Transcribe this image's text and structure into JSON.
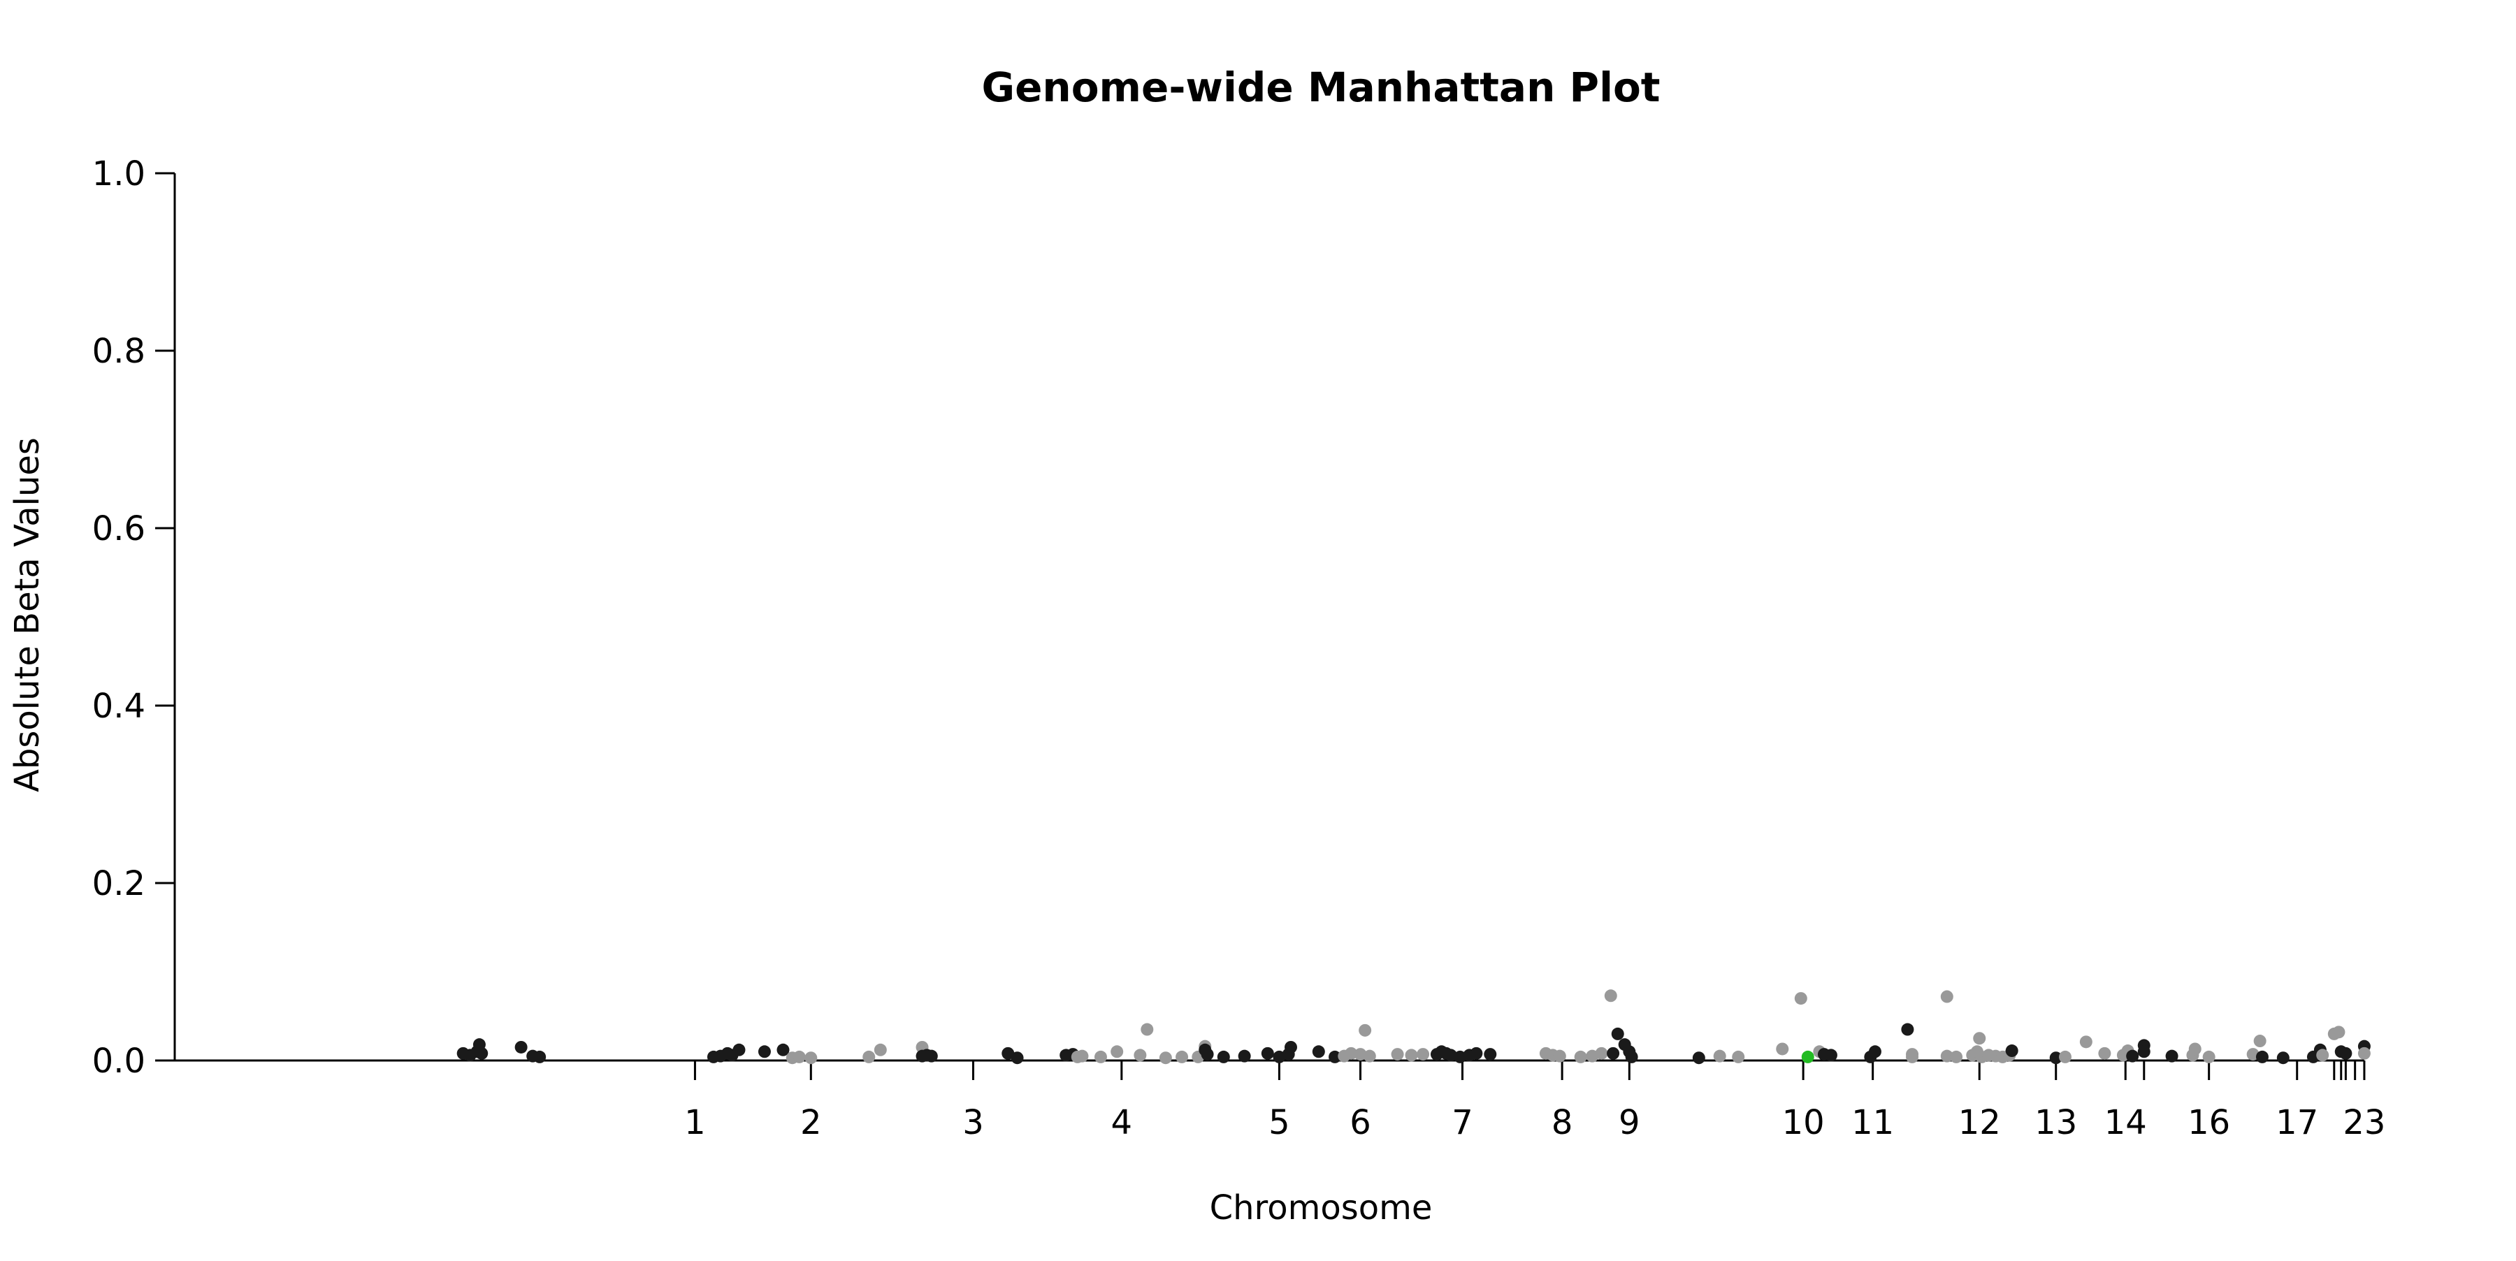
{
  "chart_data": {
    "type": "scatter",
    "title": "Genome-wide Manhattan Plot",
    "xlabel": "Chromosome",
    "ylabel": "Absolute Beta Values",
    "ylim": [
      0,
      1.0
    ],
    "y_ticks": [
      "0.0",
      "0.2",
      "0.4",
      "0.6",
      "0.8",
      "1.0"
    ],
    "x_ticks": [
      {
        "label": "1",
        "pos": 0.7
      },
      {
        "label": "2",
        "pos": 1.2
      },
      {
        "label": "3",
        "pos": 1.9
      },
      {
        "label": "4",
        "pos": 2.54
      },
      {
        "label": "5",
        "pos": 3.22
      },
      {
        "label": "6",
        "pos": 3.57
      },
      {
        "label": "7",
        "pos": 4.01
      },
      {
        "label": "8",
        "pos": 4.44
      },
      {
        "label": "9",
        "pos": 4.73
      },
      {
        "label": "10",
        "pos": 5.48
      },
      {
        "label": "11",
        "pos": 5.78
      },
      {
        "label": "12",
        "pos": 6.24
      },
      {
        "label": "13",
        "pos": 6.57
      },
      {
        "label": "14",
        "pos": 6.87
      },
      {
        "label": "",
        "pos": 6.95
      },
      {
        "label": "16",
        "pos": 7.23
      },
      {
        "label": "17",
        "pos": 7.61
      },
      {
        "label": "",
        "pos": 7.77
      },
      {
        "label": "",
        "pos": 7.8
      },
      {
        "label": "",
        "pos": 7.82
      },
      {
        "label": "",
        "pos": 7.86
      },
      {
        "label": "23",
        "pos": 7.9
      }
    ],
    "xlim": [
      -0.7,
      8.06
    ],
    "grid": false,
    "legend": "none",
    "colors": {
      "dark": "#1a1a1a",
      "light": "#999999",
      "highlight": "#22bb22"
    },
    "points": [
      {
        "x": -0.3,
        "y": 0.008,
        "c": "dark"
      },
      {
        "x": -0.27,
        "y": 0.006,
        "c": "dark"
      },
      {
        "x": -0.24,
        "y": 0.01,
        "c": "dark"
      },
      {
        "x": -0.23,
        "y": 0.018,
        "c": "dark"
      },
      {
        "x": -0.22,
        "y": 0.008,
        "c": "dark"
      },
      {
        "x": -0.05,
        "y": 0.015,
        "c": "dark"
      },
      {
        "x": 0.0,
        "y": 0.005,
        "c": "dark"
      },
      {
        "x": 0.03,
        "y": 0.004,
        "c": "dark"
      },
      {
        "x": 0.78,
        "y": 0.004,
        "c": "dark"
      },
      {
        "x": 0.81,
        "y": 0.005,
        "c": "dark"
      },
      {
        "x": 0.84,
        "y": 0.008,
        "c": "dark"
      },
      {
        "x": 0.86,
        "y": 0.006,
        "c": "dark"
      },
      {
        "x": 0.89,
        "y": 0.012,
        "c": "dark"
      },
      {
        "x": 1.0,
        "y": 0.01,
        "c": "dark"
      },
      {
        "x": 1.08,
        "y": 0.012,
        "c": "dark"
      },
      {
        "x": 1.12,
        "y": 0.003,
        "c": "light"
      },
      {
        "x": 1.15,
        "y": 0.004,
        "c": "light"
      },
      {
        "x": 1.2,
        "y": 0.003,
        "c": "light"
      },
      {
        "x": 1.45,
        "y": 0.004,
        "c": "light"
      },
      {
        "x": 1.5,
        "y": 0.012,
        "c": "light"
      },
      {
        "x": 1.68,
        "y": 0.015,
        "c": "light"
      },
      {
        "x": 1.68,
        "y": 0.005,
        "c": "dark"
      },
      {
        "x": 1.7,
        "y": 0.006,
        "c": "dark"
      },
      {
        "x": 1.72,
        "y": 0.005,
        "c": "dark"
      },
      {
        "x": 2.05,
        "y": 0.008,
        "c": "dark"
      },
      {
        "x": 2.09,
        "y": 0.003,
        "c": "dark"
      },
      {
        "x": 2.3,
        "y": 0.006,
        "c": "dark"
      },
      {
        "x": 2.33,
        "y": 0.007,
        "c": "dark"
      },
      {
        "x": 2.35,
        "y": 0.004,
        "c": "light"
      },
      {
        "x": 2.37,
        "y": 0.005,
        "c": "light"
      },
      {
        "x": 2.45,
        "y": 0.004,
        "c": "light"
      },
      {
        "x": 2.52,
        "y": 0.01,
        "c": "light"
      },
      {
        "x": 2.62,
        "y": 0.006,
        "c": "light"
      },
      {
        "x": 2.65,
        "y": 0.035,
        "c": "light"
      },
      {
        "x": 2.73,
        "y": 0.003,
        "c": "light"
      },
      {
        "x": 2.8,
        "y": 0.004,
        "c": "light"
      },
      {
        "x": 2.87,
        "y": 0.004,
        "c": "light"
      },
      {
        "x": 2.9,
        "y": 0.016,
        "c": "light"
      },
      {
        "x": 2.9,
        "y": 0.012,
        "c": "dark"
      },
      {
        "x": 2.91,
        "y": 0.007,
        "c": "dark"
      },
      {
        "x": 2.98,
        "y": 0.004,
        "c": "dark"
      },
      {
        "x": 3.07,
        "y": 0.005,
        "c": "dark"
      },
      {
        "x": 3.17,
        "y": 0.008,
        "c": "dark"
      },
      {
        "x": 3.22,
        "y": 0.004,
        "c": "dark"
      },
      {
        "x": 3.26,
        "y": 0.007,
        "c": "dark"
      },
      {
        "x": 3.27,
        "y": 0.015,
        "c": "dark"
      },
      {
        "x": 3.39,
        "y": 0.01,
        "c": "dark"
      },
      {
        "x": 3.46,
        "y": 0.004,
        "c": "dark"
      },
      {
        "x": 3.5,
        "y": 0.005,
        "c": "light"
      },
      {
        "x": 3.53,
        "y": 0.008,
        "c": "light"
      },
      {
        "x": 3.57,
        "y": 0.007,
        "c": "light"
      },
      {
        "x": 3.59,
        "y": 0.034,
        "c": "light"
      },
      {
        "x": 3.61,
        "y": 0.005,
        "c": "light"
      },
      {
        "x": 3.73,
        "y": 0.007,
        "c": "light"
      },
      {
        "x": 3.79,
        "y": 0.006,
        "c": "light"
      },
      {
        "x": 3.84,
        "y": 0.007,
        "c": "light"
      },
      {
        "x": 3.9,
        "y": 0.007,
        "c": "dark"
      },
      {
        "x": 3.92,
        "y": 0.01,
        "c": "dark"
      },
      {
        "x": 3.94,
        "y": 0.008,
        "c": "dark"
      },
      {
        "x": 3.96,
        "y": 0.006,
        "c": "dark"
      },
      {
        "x": 4.0,
        "y": 0.004,
        "c": "dark"
      },
      {
        "x": 4.04,
        "y": 0.006,
        "c": "dark"
      },
      {
        "x": 4.07,
        "y": 0.008,
        "c": "dark"
      },
      {
        "x": 4.13,
        "y": 0.007,
        "c": "dark"
      },
      {
        "x": 4.37,
        "y": 0.008,
        "c": "light"
      },
      {
        "x": 4.4,
        "y": 0.006,
        "c": "light"
      },
      {
        "x": 4.43,
        "y": 0.005,
        "c": "light"
      },
      {
        "x": 4.52,
        "y": 0.004,
        "c": "light"
      },
      {
        "x": 4.57,
        "y": 0.005,
        "c": "light"
      },
      {
        "x": 4.61,
        "y": 0.008,
        "c": "light"
      },
      {
        "x": 4.65,
        "y": 0.073,
        "c": "light"
      },
      {
        "x": 4.66,
        "y": 0.008,
        "c": "dark"
      },
      {
        "x": 4.68,
        "y": 0.03,
        "c": "dark"
      },
      {
        "x": 4.71,
        "y": 0.018,
        "c": "dark"
      },
      {
        "x": 4.73,
        "y": 0.01,
        "c": "dark"
      },
      {
        "x": 4.74,
        "y": 0.004,
        "c": "dark"
      },
      {
        "x": 5.03,
        "y": 0.003,
        "c": "dark"
      },
      {
        "x": 5.12,
        "y": 0.005,
        "c": "light"
      },
      {
        "x": 5.2,
        "y": 0.004,
        "c": "light"
      },
      {
        "x": 5.39,
        "y": 0.013,
        "c": "light"
      },
      {
        "x": 5.47,
        "y": 0.07,
        "c": "light"
      },
      {
        "x": 5.5,
        "y": 0.004,
        "c": "highlight"
      },
      {
        "x": 5.55,
        "y": 0.01,
        "c": "light"
      },
      {
        "x": 5.57,
        "y": 0.007,
        "c": "dark"
      },
      {
        "x": 5.6,
        "y": 0.006,
        "c": "dark"
      },
      {
        "x": 5.77,
        "y": 0.004,
        "c": "dark"
      },
      {
        "x": 5.79,
        "y": 0.01,
        "c": "dark"
      },
      {
        "x": 5.93,
        "y": 0.035,
        "c": "dark"
      },
      {
        "x": 5.95,
        "y": 0.007,
        "c": "light"
      },
      {
        "x": 5.95,
        "y": 0.004,
        "c": "light"
      },
      {
        "x": 6.1,
        "y": 0.072,
        "c": "light"
      },
      {
        "x": 6.1,
        "y": 0.005,
        "c": "light"
      },
      {
        "x": 6.14,
        "y": 0.004,
        "c": "light"
      },
      {
        "x": 6.21,
        "y": 0.006,
        "c": "light"
      },
      {
        "x": 6.23,
        "y": 0.01,
        "c": "light"
      },
      {
        "x": 6.24,
        "y": 0.025,
        "c": "light"
      },
      {
        "x": 6.25,
        "y": 0.004,
        "c": "light"
      },
      {
        "x": 6.28,
        "y": 0.006,
        "c": "light"
      },
      {
        "x": 6.31,
        "y": 0.005,
        "c": "light"
      },
      {
        "x": 6.34,
        "y": 0.004,
        "c": "light"
      },
      {
        "x": 6.37,
        "y": 0.006,
        "c": "light"
      },
      {
        "x": 6.38,
        "y": 0.011,
        "c": "dark"
      },
      {
        "x": 6.57,
        "y": 0.003,
        "c": "dark"
      },
      {
        "x": 6.61,
        "y": 0.004,
        "c": "light"
      },
      {
        "x": 6.7,
        "y": 0.021,
        "c": "light"
      },
      {
        "x": 6.78,
        "y": 0.008,
        "c": "light"
      },
      {
        "x": 6.86,
        "y": 0.006,
        "c": "light"
      },
      {
        "x": 6.88,
        "y": 0.011,
        "c": "light"
      },
      {
        "x": 6.9,
        "y": 0.005,
        "c": "dark"
      },
      {
        "x": 6.95,
        "y": 0.017,
        "c": "dark"
      },
      {
        "x": 6.95,
        "y": 0.01,
        "c": "dark"
      },
      {
        "x": 7.07,
        "y": 0.005,
        "c": "dark"
      },
      {
        "x": 7.16,
        "y": 0.006,
        "c": "light"
      },
      {
        "x": 7.17,
        "y": 0.013,
        "c": "light"
      },
      {
        "x": 7.23,
        "y": 0.004,
        "c": "light"
      },
      {
        "x": 7.42,
        "y": 0.007,
        "c": "light"
      },
      {
        "x": 7.45,
        "y": 0.022,
        "c": "light"
      },
      {
        "x": 7.46,
        "y": 0.004,
        "c": "dark"
      },
      {
        "x": 7.55,
        "y": 0.003,
        "c": "dark"
      },
      {
        "x": 7.68,
        "y": 0.004,
        "c": "dark"
      },
      {
        "x": 7.71,
        "y": 0.012,
        "c": "dark"
      },
      {
        "x": 7.72,
        "y": 0.006,
        "c": "light"
      },
      {
        "x": 7.77,
        "y": 0.03,
        "c": "light"
      },
      {
        "x": 7.79,
        "y": 0.032,
        "c": "light"
      },
      {
        "x": 7.8,
        "y": 0.01,
        "c": "dark"
      },
      {
        "x": 7.82,
        "y": 0.008,
        "c": "dark"
      },
      {
        "x": 7.9,
        "y": 0.016,
        "c": "dark"
      },
      {
        "x": 7.9,
        "y": 0.008,
        "c": "light"
      }
    ]
  }
}
